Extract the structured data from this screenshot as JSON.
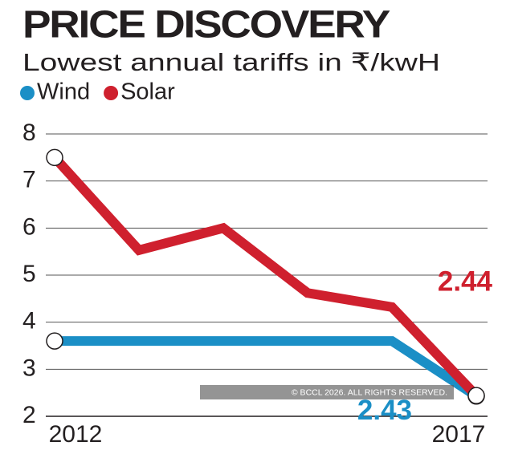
{
  "chart_data": {
    "type": "line",
    "title": "PRICE DISCOVERY",
    "subtitle": "Lowest annual tariffs in ₹/kwH",
    "categories": [
      "2012",
      null,
      null,
      null,
      null,
      "2017"
    ],
    "series": [
      {
        "name": "Wind",
        "color": "#1b8fc6",
        "values": [
          3.6,
          3.6,
          3.6,
          3.6,
          3.6,
          2.43
        ]
      },
      {
        "name": "Solar",
        "color": "#cf202e",
        "values": [
          7.5,
          5.53,
          6.0,
          4.62,
          4.32,
          2.44
        ]
      }
    ],
    "ylim": [
      2,
      8
    ],
    "yticks": [
      2,
      3,
      4,
      5,
      6,
      7,
      8
    ],
    "grid": true,
    "legend": "top-left",
    "watermark": "© BCCL 2026. ALL RIGHTS RESERVED."
  }
}
